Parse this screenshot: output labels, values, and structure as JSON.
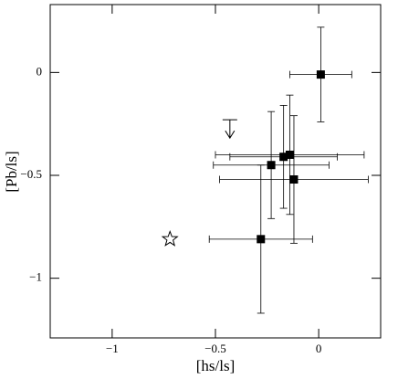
{
  "chart_data": {
    "type": "scatter",
    "x_label": "[hs/ls]",
    "y_label": "[Pb/ls]",
    "xlim": [
      -1.3,
      0.3
    ],
    "ylim": [
      -1.29,
      0.33
    ],
    "xticks": [
      {
        "value": -1,
        "label": "−1"
      },
      {
        "value": -0.5,
        "label": "−0.5"
      },
      0
    ],
    "yticks": [
      0,
      {
        "value": -0.5,
        "label": "−0.5"
      },
      {
        "value": -1,
        "label": "−1"
      }
    ],
    "color": "#000000",
    "points": {
      "x": [
        0.01,
        -0.23,
        -0.17,
        -0.14,
        -0.12,
        -0.28
      ],
      "y": [
        -0.01,
        -0.45,
        -0.41,
        -0.4,
        -0.52,
        -0.81
      ],
      "xerr": [
        0.15,
        0.28,
        0.26,
        0.36,
        0.36,
        0.25
      ],
      "yerr": [
        0.23,
        0.26,
        0.25,
        0.29,
        0.31,
        0.36
      ]
    },
    "star": {
      "x": -0.72,
      "y": -0.81
    },
    "upper_limit": {
      "x": -0.43,
      "y": -0.23
    }
  }
}
